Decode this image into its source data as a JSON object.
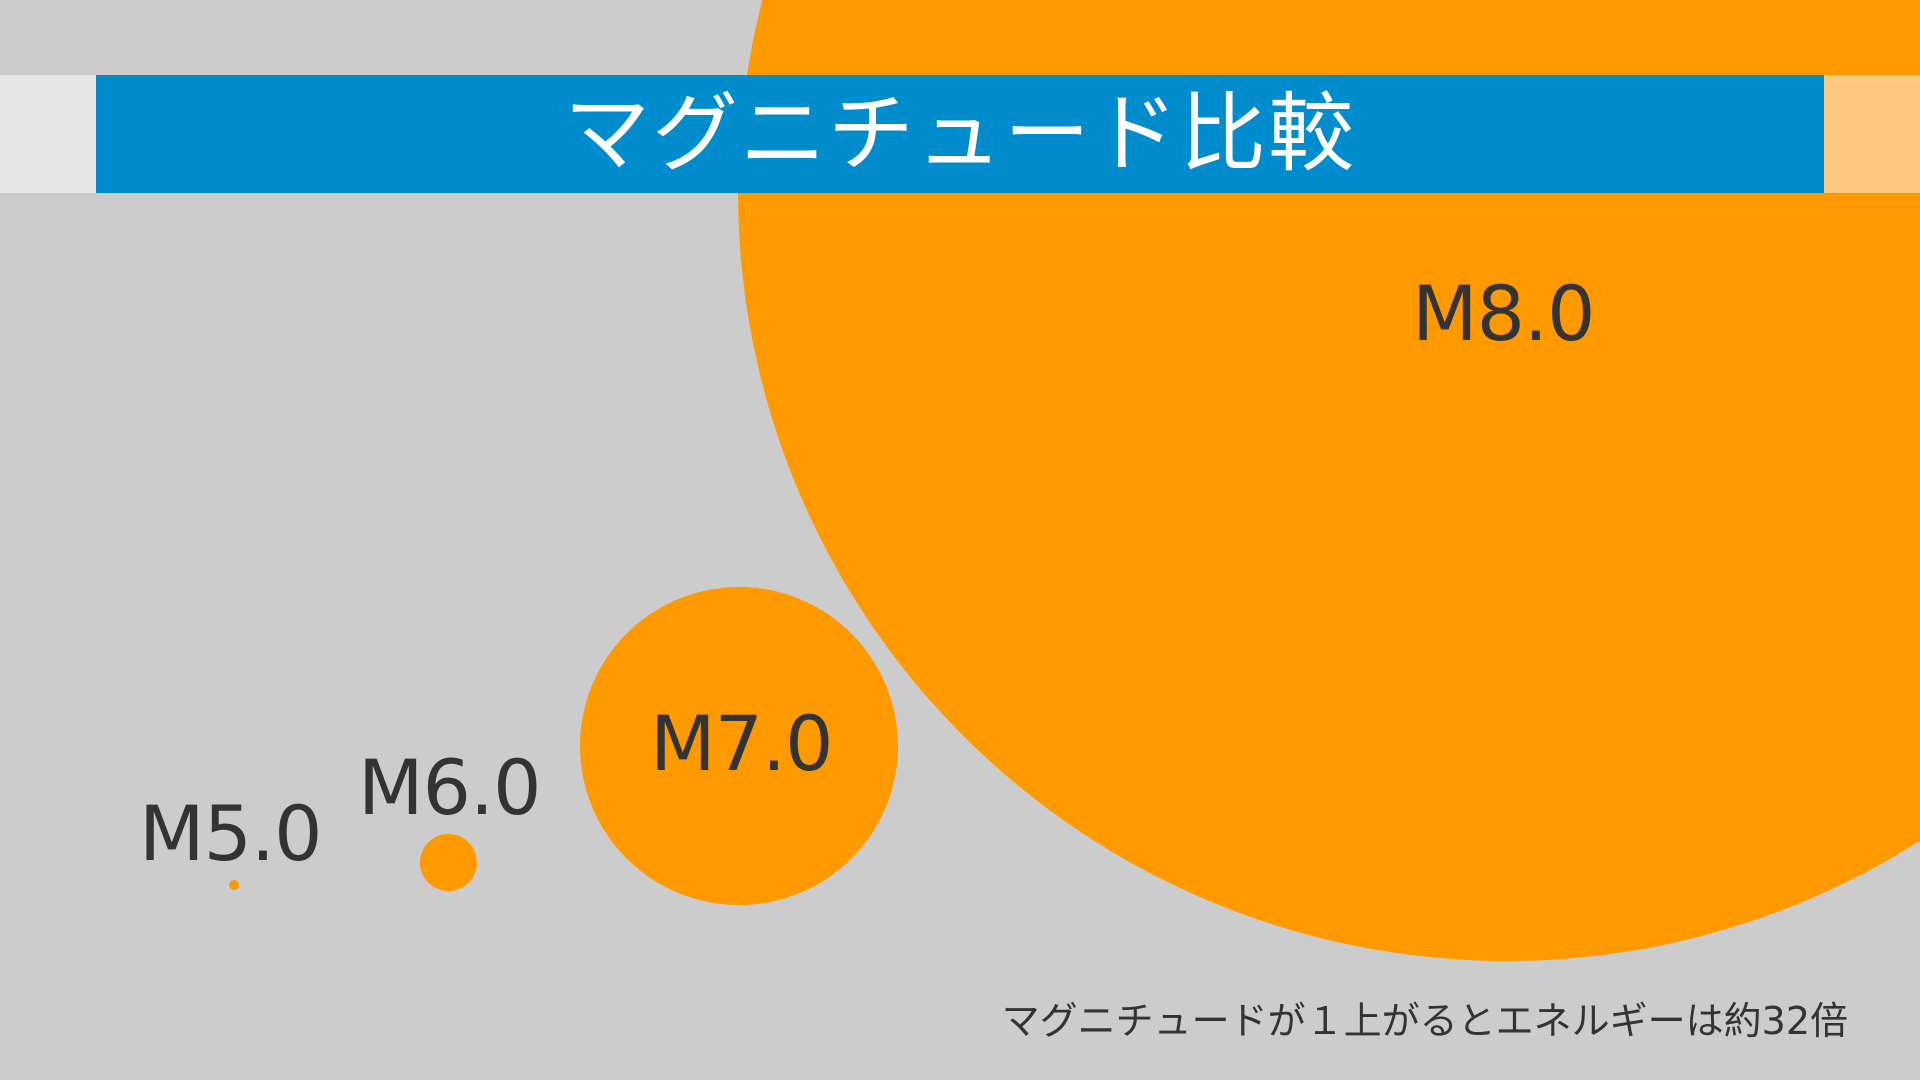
{
  "title": "マグニチュード比較",
  "note": "マグニチュードが１上がるとエネルギーは約32倍",
  "bubbles": [
    {
      "id": "m5",
      "label": "M5.0",
      "magnitude": 5.0,
      "relative_energy": 1
    },
    {
      "id": "m6",
      "label": "M6.0",
      "magnitude": 6.0,
      "relative_energy": 32
    },
    {
      "id": "m7",
      "label": "M7.0",
      "magnitude": 7.0,
      "relative_energy": 1024
    },
    {
      "id": "m8",
      "label": "M8.0",
      "magnitude": 8.0,
      "relative_energy": 32768
    }
  ],
  "colors": {
    "background": "#cccccc",
    "bubble": "#ff9900",
    "title_bar": "#008ccd",
    "title_text": "#ffffff",
    "label_text": "#333333",
    "band_left": "#e6e6e6",
    "band_right": "#ffc780"
  }
}
